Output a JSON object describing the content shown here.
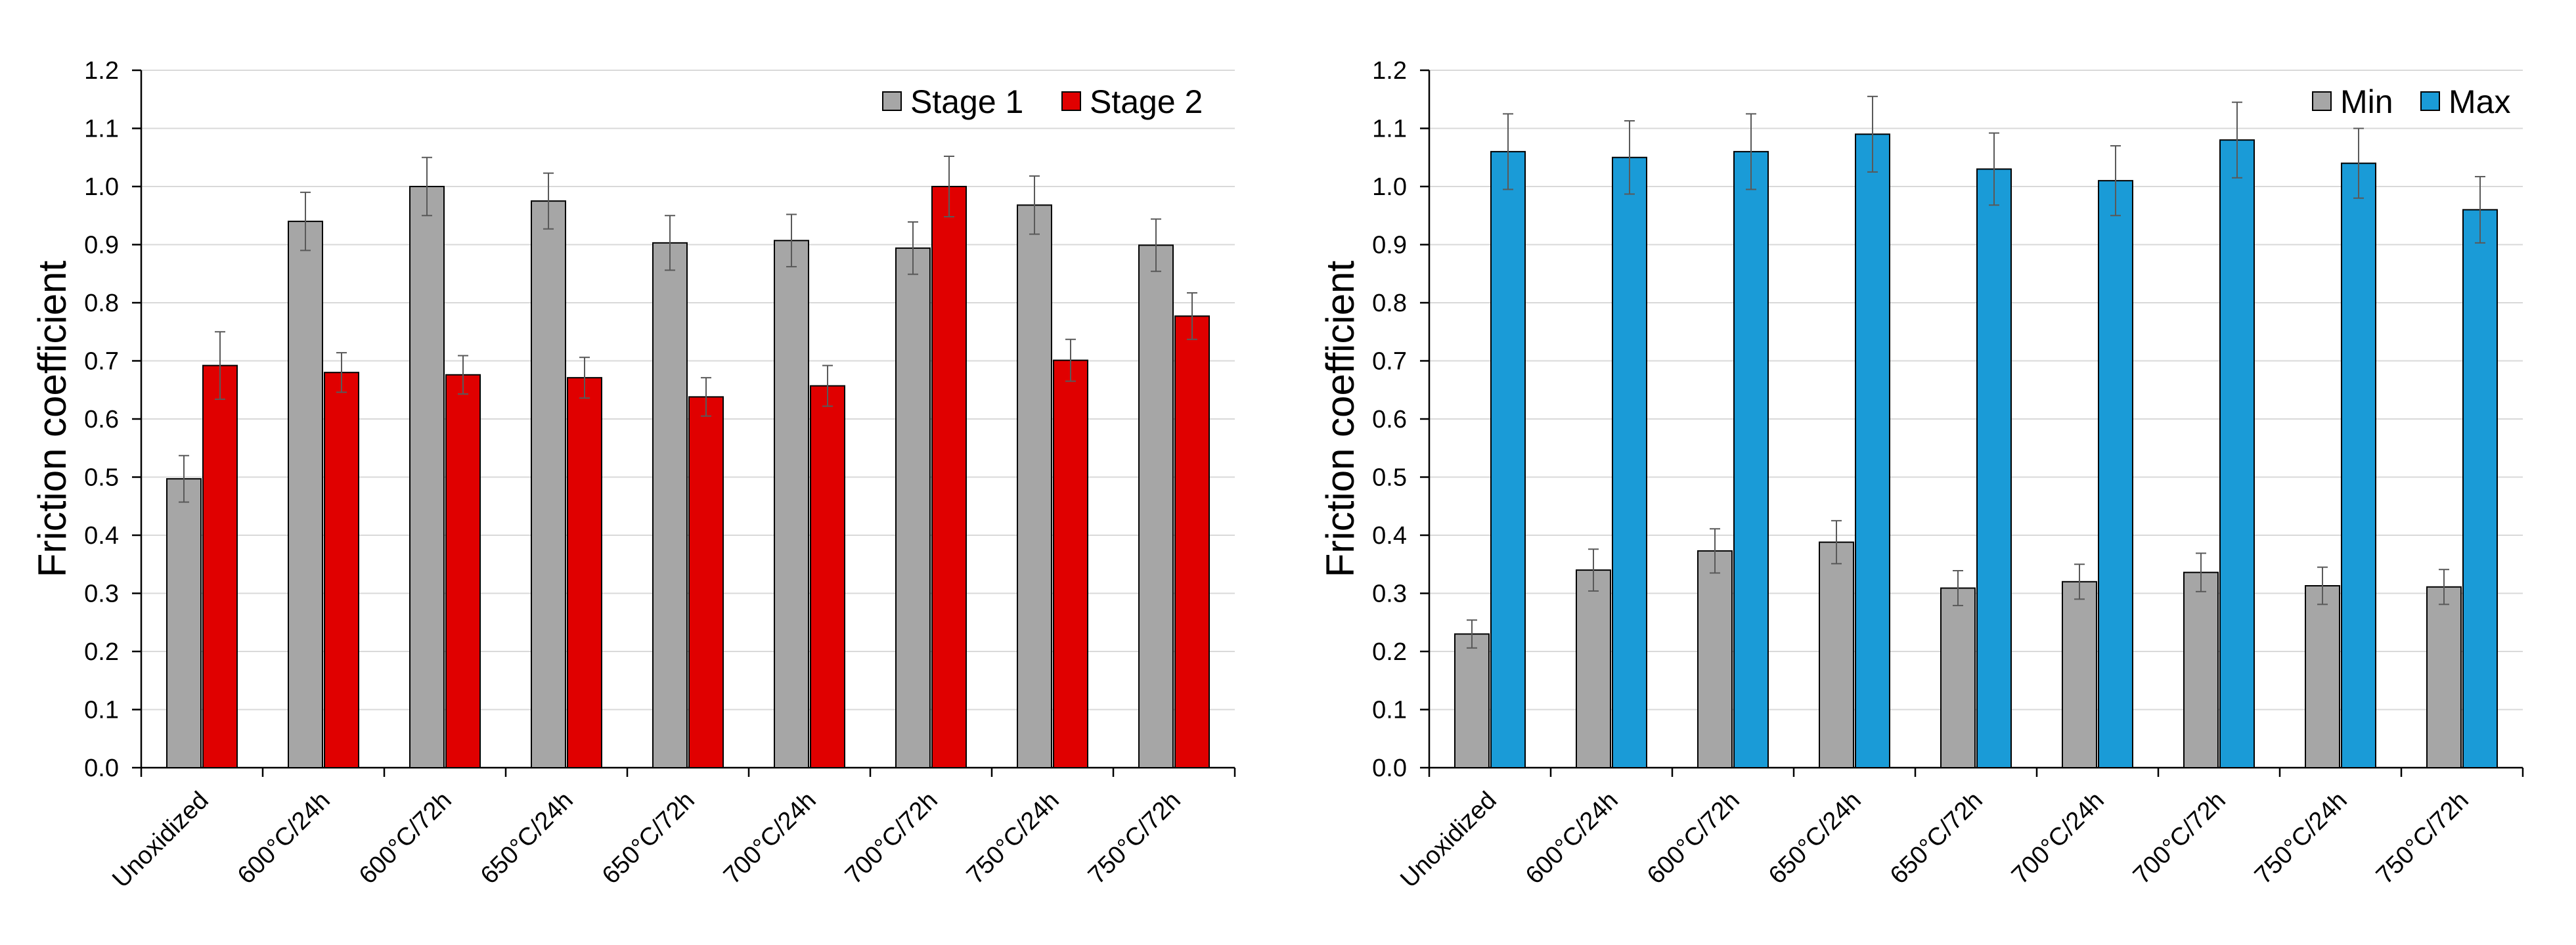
{
  "chart_data": [
    {
      "type": "bar",
      "title": "",
      "xlabel": "",
      "ylabel": "Friction coefficient",
      "ylim": [
        0,
        1.2
      ],
      "yticks": [
        "0.0",
        "0.1",
        "0.2",
        "0.3",
        "0.4",
        "0.5",
        "0.6",
        "0.7",
        "0.8",
        "0.9",
        "1.0",
        "1.1",
        "1.2"
      ],
      "grid": true,
      "legend_position": "top-right",
      "categories": [
        "Unoxidized",
        "600°C/24h",
        "600°C/72h",
        "650°C/24h",
        "650°C/72h",
        "700°C/24h",
        "700°C/72h",
        "750°C/24h",
        "750°C/72h"
      ],
      "series": [
        {
          "name": "Stage 1",
          "color": "#a6a6a6",
          "values": [
            0.497,
            0.94,
            1.0,
            0.975,
            0.903,
            0.907,
            0.894,
            0.968,
            0.899
          ],
          "errors": [
            0.04,
            0.05,
            0.05,
            0.048,
            0.047,
            0.045,
            0.045,
            0.05,
            0.045
          ]
        },
        {
          "name": "Stage 2",
          "color": "#e00000",
          "values": [
            0.692,
            0.68,
            0.676,
            0.671,
            0.638,
            0.657,
            1.0,
            0.701,
            0.777
          ],
          "errors": [
            0.058,
            0.034,
            0.033,
            0.035,
            0.033,
            0.035,
            0.052,
            0.036,
            0.04
          ]
        }
      ]
    },
    {
      "type": "bar",
      "title": "",
      "xlabel": "",
      "ylabel": "Friction coefficient",
      "ylim": [
        0,
        1.2
      ],
      "yticks": [
        "0.0",
        "0.1",
        "0.2",
        "0.3",
        "0.4",
        "0.5",
        "0.6",
        "0.7",
        "0.8",
        "0.9",
        "1.0",
        "1.1",
        "1.2"
      ],
      "grid": true,
      "legend_position": "top-right",
      "categories": [
        "Unoxidized",
        "600°C/24h",
        "600°C/72h",
        "650°C/24h",
        "650°C/72h",
        "700°C/24h",
        "700°C/72h",
        "750°C/24h",
        "750°C/72h"
      ],
      "series": [
        {
          "name": "Min",
          "color": "#a6a6a6",
          "values": [
            0.23,
            0.34,
            0.373,
            0.388,
            0.309,
            0.32,
            0.336,
            0.313,
            0.311
          ],
          "errors": [
            0.024,
            0.036,
            0.038,
            0.037,
            0.03,
            0.03,
            0.033,
            0.032,
            0.03
          ]
        },
        {
          "name": "Max",
          "color": "#1a9bd7",
          "values": [
            1.06,
            1.05,
            1.06,
            1.09,
            1.03,
            1.01,
            1.08,
            1.04,
            0.96
          ],
          "errors": [
            0.065,
            0.063,
            0.065,
            0.065,
            0.062,
            0.06,
            0.065,
            0.06,
            0.057
          ]
        }
      ]
    }
  ]
}
